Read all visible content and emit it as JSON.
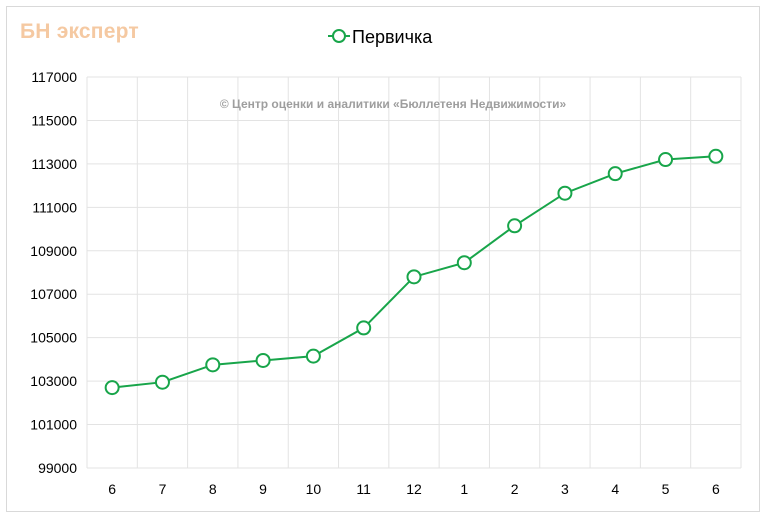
{
  "logo_text": "БН эксперт",
  "watermark": "© Центр оценки и аналитики «Бюллетеня Недвижимости»",
  "colors": {
    "series": "#18a54a",
    "grid": "#e3e3e3",
    "logo": "#f5c9a2"
  },
  "chart_data": {
    "type": "line",
    "title": "",
    "xlabel": "",
    "ylabel": "",
    "legend_position": "top-center",
    "grid": true,
    "categories": [
      "6",
      "7",
      "8",
      "9",
      "10",
      "11",
      "12",
      "1",
      "2",
      "3",
      "4",
      "5",
      "6"
    ],
    "series": [
      {
        "name": "Первичка",
        "values": [
          102700,
          102950,
          103750,
          103950,
          104150,
          105450,
          107800,
          108450,
          110150,
          111650,
          112550,
          113200,
          113350
        ]
      }
    ],
    "ylim": [
      99000,
      117000
    ],
    "yticks": [
      "99000",
      "101000",
      "103000",
      "105000",
      "107000",
      "109000",
      "111000",
      "113000",
      "115000",
      "117000"
    ]
  }
}
